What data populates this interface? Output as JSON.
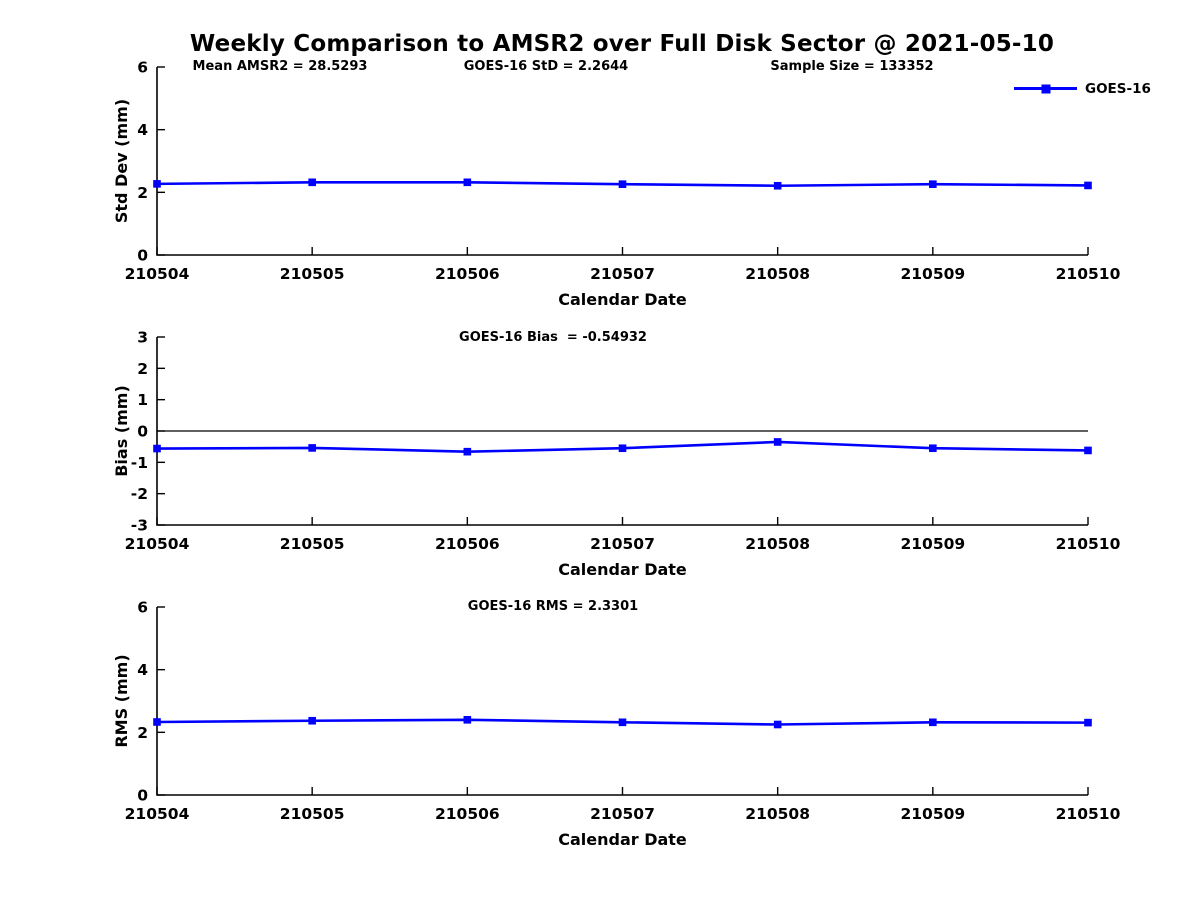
{
  "title": "Weekly Comparison to AMSR2 over Full Disk Sector @ 2021-05-10",
  "legend": {
    "label": "GOES-16"
  },
  "colors": {
    "line": "#0000ff",
    "axis": "#000000",
    "text": "#000000",
    "background": "#ffffff"
  },
  "chart_data": [
    {
      "type": "line",
      "name": "std-dev-vs-date",
      "categories": [
        "210504",
        "210505",
        "210506",
        "210507",
        "210508",
        "210509",
        "210510"
      ],
      "series": [
        {
          "name": "GOES-16",
          "values": [
            2.27,
            2.32,
            2.32,
            2.26,
            2.21,
            2.26,
            2.22
          ]
        }
      ],
      "annotations": [
        "Mean AMSR2 = 28.5293",
        "GOES-16 StD = 2.2644",
        "Sample Size = 133352"
      ],
      "xlabel": "Calendar Date",
      "ylabel": "Std Dev (mm)",
      "ylim": [
        0,
        6
      ],
      "yticks": [
        0,
        2,
        4,
        6
      ],
      "grid": false,
      "legend_position": "top-right",
      "marker": "square"
    },
    {
      "type": "line",
      "name": "bias-vs-date",
      "categories": [
        "210504",
        "210505",
        "210506",
        "210507",
        "210508",
        "210509",
        "210510"
      ],
      "series": [
        {
          "name": "GOES-16",
          "values": [
            -0.56,
            -0.54,
            -0.66,
            -0.55,
            -0.35,
            -0.55,
            -0.62
          ]
        }
      ],
      "annotations": [
        "GOES-16 Bias  = -0.54932"
      ],
      "xlabel": "Calendar Date",
      "ylabel": "Bias (mm)",
      "ylim": [
        -3,
        3
      ],
      "yticks": [
        -3,
        -2,
        -1,
        0,
        1,
        2,
        3
      ],
      "zero_line": true,
      "grid": false,
      "marker": "square"
    },
    {
      "type": "line",
      "name": "rms-vs-date",
      "categories": [
        "210504",
        "210505",
        "210506",
        "210507",
        "210508",
        "210509",
        "210510"
      ],
      "series": [
        {
          "name": "GOES-16",
          "values": [
            2.33,
            2.37,
            2.4,
            2.32,
            2.25,
            2.32,
            2.31
          ]
        }
      ],
      "annotations": [
        "GOES-16 RMS = 2.3301"
      ],
      "xlabel": "Calendar Date",
      "ylabel": "RMS (mm)",
      "ylim": [
        0,
        6
      ],
      "yticks": [
        0,
        2,
        4,
        6
      ],
      "grid": false,
      "marker": "square"
    }
  ]
}
